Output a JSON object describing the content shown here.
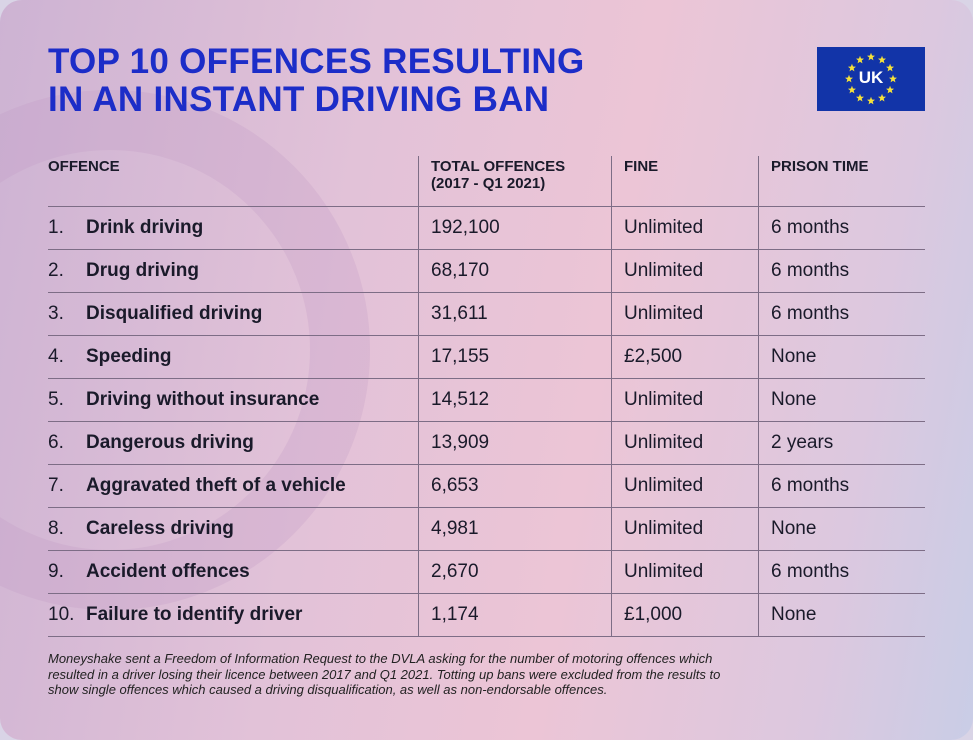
{
  "title_line1": "TOP 10 OFFENCES RESULTING",
  "title_line2": "IN AN INSTANT DRIVING BAN",
  "flag": {
    "label": "UK",
    "icon": "eu-flag-icon",
    "color": "#1234a8",
    "star_color": "#f5e13a"
  },
  "table": {
    "headers": {
      "offence": "OFFENCE",
      "total_line1": "TOTAL OFFENCES",
      "total_line2": "(2017 - Q1 2021)",
      "fine": "FINE",
      "prison": "PRISON TIME"
    },
    "rows": [
      {
        "num": "1.",
        "offence": "Drink driving",
        "total": "192,100",
        "fine": "Unlimited",
        "prison": "6 months"
      },
      {
        "num": "2.",
        "offence": "Drug driving",
        "total": "68,170",
        "fine": "Unlimited",
        "prison": "6 months"
      },
      {
        "num": "3.",
        "offence": "Disqualified driving",
        "total": "31,611",
        "fine": "Unlimited",
        "prison": "6 months"
      },
      {
        "num": "4.",
        "offence": "Speeding",
        "total": "17,155",
        "fine": "£2,500",
        "prison": "None"
      },
      {
        "num": "5.",
        "offence": "Driving without insurance",
        "total": "14,512",
        "fine": "Unlimited",
        "prison": "None"
      },
      {
        "num": "6.",
        "offence": "Dangerous driving",
        "total": "13,909",
        "fine": "Unlimited",
        "prison": "2 years"
      },
      {
        "num": "7.",
        "offence": "Aggravated theft of a vehicle",
        "total": "6,653",
        "fine": "Unlimited",
        "prison": "6 months"
      },
      {
        "num": "8.",
        "offence": "Careless driving",
        "total": "4,981",
        "fine": "Unlimited",
        "prison": "None"
      },
      {
        "num": "9.",
        "offence": "Accident offences",
        "total": "2,670",
        "fine": "Unlimited",
        "prison": "6 months"
      },
      {
        "num": "10.",
        "offence": "Failure to identify driver",
        "total": "1,174",
        "fine": "£1,000",
        "prison": "None"
      }
    ]
  },
  "footnote": "Moneyshake sent a Freedom of Information Request to the DVLA asking for the number of motoring offences which resulted in a driver losing their licence between 2017 and Q1 2021. Totting up bans were excluded from the results to show single offences which caused a driving disqualification, as well as non-endorsable offences."
}
